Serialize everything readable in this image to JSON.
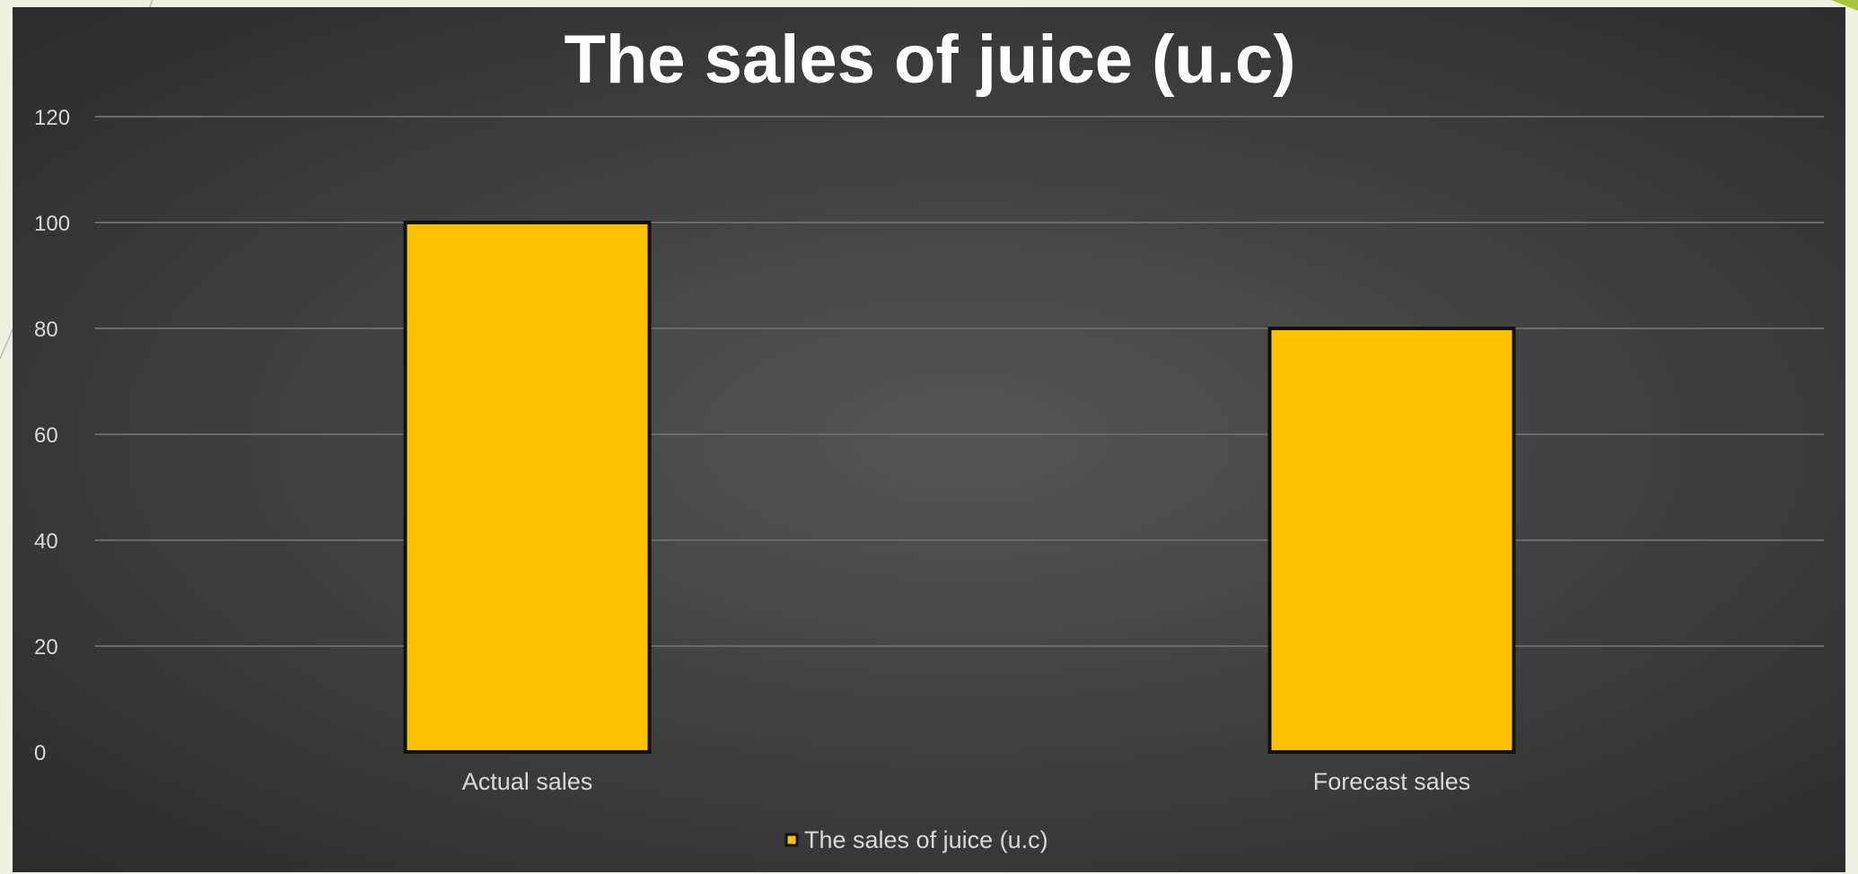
{
  "chart_data": {
    "type": "bar",
    "title": "The sales of juice (u.c)",
    "categories": [
      "Actual sales",
      "Forecast sales"
    ],
    "series": [
      {
        "name": "The sales of juice (u.c)",
        "values": [
          100,
          80
        ],
        "color": "#ffc000"
      }
    ],
    "ylim": [
      0,
      120
    ],
    "yticks": [
      0,
      20,
      40,
      60,
      80,
      100,
      120
    ],
    "grid": true,
    "legend_position": "bottom"
  },
  "colors": {
    "bar_fill": "#ffc000",
    "bar_outline": "#111111",
    "gridline": "#6a6a6a",
    "text": "#d9d9d9",
    "title": "#ffffff",
    "slide_background": "#eef0e2",
    "accent_triangle": "#a8c53a"
  }
}
